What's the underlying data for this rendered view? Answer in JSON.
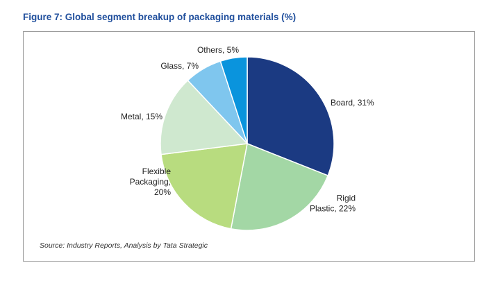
{
  "figure": {
    "title": "Figure 7: Global segment breakup of packaging materials (%)",
    "source": "Source: Industry Reports, Analysis by Tata Strategic"
  },
  "chart_data": {
    "type": "pie",
    "title": "Figure 7: Global segment breakup of packaging materials (%)",
    "unit": "%",
    "start": "12 o'clock",
    "direction": "clockwise",
    "slices": [
      {
        "label": "Board",
        "value": 31,
        "color": "#1b3a82",
        "text": [
          "Board, 31%"
        ]
      },
      {
        "label": "Rigid Plastic",
        "value": 22,
        "color": "#a3d7a5",
        "text": [
          "Rigid",
          "Plastic, 22%"
        ]
      },
      {
        "label": "Flexible Packaging",
        "value": 20,
        "color": "#b8dc7f",
        "text": [
          "Flexible",
          "Packaging,",
          "20%"
        ]
      },
      {
        "label": "Metal",
        "value": 15,
        "color": "#cfe8cf",
        "text": [
          "Metal, 15%"
        ]
      },
      {
        "label": "Glass",
        "value": 7,
        "color": "#7fc6ee",
        "text": [
          "Glass, 7%"
        ]
      },
      {
        "label": "Others",
        "value": 5,
        "color": "#0a94dd",
        "text": [
          "Others, 5%"
        ]
      }
    ]
  }
}
